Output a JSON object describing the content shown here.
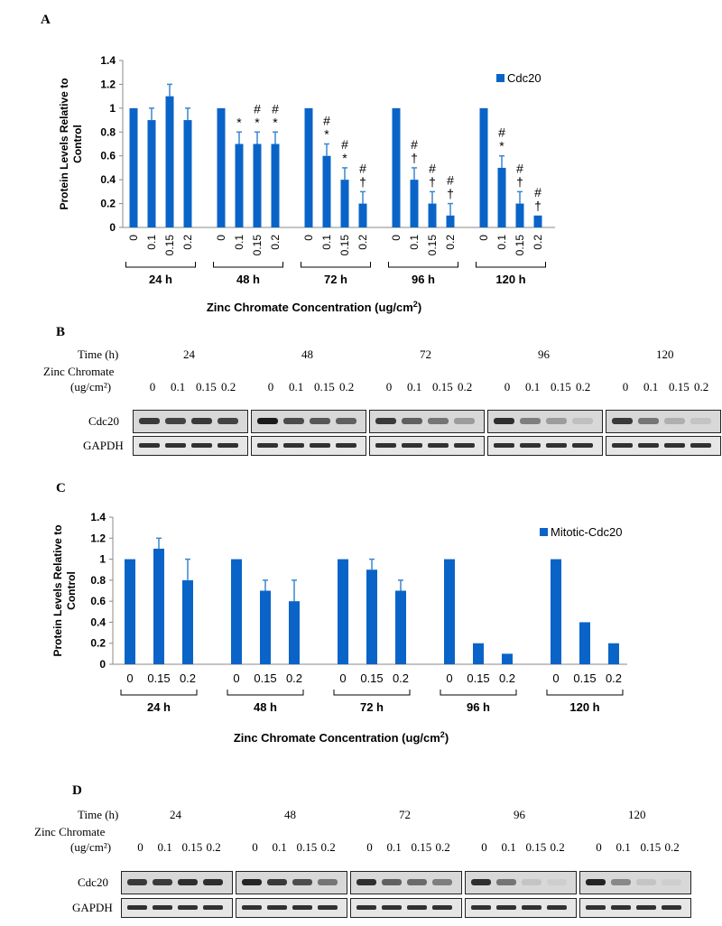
{
  "panels": {
    "A": "A",
    "B": "B",
    "C": "C",
    "D": "D"
  },
  "colors": {
    "bar": "#0a64c8",
    "error": "#3a86d0",
    "axis": "#888888"
  },
  "chart_data": [
    {
      "id": "A",
      "type": "bar",
      "ylabel": "Protein Levels Relative to Control",
      "xlabel": "Zinc Chromate Concentration (ug/cm²)",
      "ylim": [
        0,
        1.4
      ],
      "yticks": [
        "0",
        "0.2",
        "0.4",
        "0.6",
        "0.8",
        "1",
        "1.2",
        "1.4"
      ],
      "legend": "Cdc20",
      "legend_position": "top-right",
      "groups": [
        {
          "label": "24 h",
          "categories": [
            "0",
            "0.1",
            "0.15",
            "0.2"
          ],
          "values": [
            1.0,
            0.9,
            1.1,
            0.9
          ],
          "errors": [
            0,
            0.1,
            0.1,
            0.1
          ],
          "marks": [
            "",
            "",
            "",
            ""
          ]
        },
        {
          "label": "48 h",
          "categories": [
            "0",
            "0.1",
            "0.15",
            "0.2"
          ],
          "values": [
            1.0,
            0.7,
            0.7,
            0.7
          ],
          "errors": [
            0,
            0.1,
            0.1,
            0.1
          ],
          "marks": [
            "",
            "*",
            "#\n*",
            "#\n*"
          ]
        },
        {
          "label": "72 h",
          "categories": [
            "0",
            "0.1",
            "0.15",
            "0.2"
          ],
          "values": [
            1.0,
            0.6,
            0.4,
            0.2
          ],
          "errors": [
            0,
            0.1,
            0.1,
            0.1
          ],
          "marks": [
            "",
            "#\n*",
            "#\n*",
            "#\n†"
          ]
        },
        {
          "label": "96 h",
          "categories": [
            "0",
            "0.1",
            "0.15",
            "0.2"
          ],
          "values": [
            1.0,
            0.4,
            0.2,
            0.1
          ],
          "errors": [
            0,
            0.1,
            0.1,
            0.1
          ],
          "marks": [
            "",
            "#\n†",
            "#\n†",
            "#\n†"
          ]
        },
        {
          "label": "120 h",
          "categories": [
            "0",
            "0.1",
            "0.15",
            "0.2"
          ],
          "values": [
            1.0,
            0.5,
            0.2,
            0.1
          ],
          "errors": [
            0,
            0.1,
            0.1,
            0
          ],
          "marks": [
            "",
            "#\n*",
            "#\n†",
            "#\n†"
          ]
        }
      ]
    },
    {
      "id": "C",
      "type": "bar",
      "ylabel": "Protein Levels Relative to Control",
      "xlabel": "Zinc Chromate Concentration (ug/cm²)",
      "ylim": [
        0,
        1.4
      ],
      "yticks": [
        "0",
        "0.2",
        "0.4",
        "0.6",
        "0.8",
        "1",
        "1.2",
        "1.4"
      ],
      "legend": "Mitotic-Cdc20",
      "legend_position": "top-right",
      "groups": [
        {
          "label": "24 h",
          "categories": [
            "0",
            "0.15",
            "0.2"
          ],
          "values": [
            1.0,
            1.1,
            0.8
          ],
          "errors": [
            0,
            0.1,
            0.2
          ]
        },
        {
          "label": "48 h",
          "categories": [
            "0",
            "0.15",
            "0.2"
          ],
          "values": [
            1.0,
            0.7,
            0.6
          ],
          "errors": [
            0,
            0.1,
            0.2
          ]
        },
        {
          "label": "72 h",
          "categories": [
            "0",
            "0.15",
            "0.2"
          ],
          "values": [
            1.0,
            0.9,
            0.7
          ],
          "errors": [
            0,
            0.1,
            0.1
          ]
        },
        {
          "label": "96 h",
          "categories": [
            "0",
            "0.15",
            "0.2"
          ],
          "values": [
            1.0,
            0.2,
            0.1
          ],
          "errors": [
            0,
            0,
            0
          ]
        },
        {
          "label": "120 h",
          "categories": [
            "0",
            "0.15",
            "0.2"
          ],
          "values": [
            1.0,
            0.4,
            0.2
          ],
          "errors": [
            0,
            0,
            0
          ]
        }
      ]
    }
  ],
  "blotB": {
    "time_label": "Time (h)",
    "zinc_label": "Zinc Chromate",
    "unit_label": "(ug/cm²)",
    "times": [
      "24",
      "48",
      "72",
      "96",
      "120"
    ],
    "concs": [
      "0",
      "0.1",
      "0.15",
      "0.2"
    ],
    "rows": [
      "Cdc20",
      "GAPDH"
    ],
    "cdc20_intensity": [
      [
        0.8,
        0.75,
        0.8,
        0.75
      ],
      [
        0.95,
        0.7,
        0.65,
        0.6
      ],
      [
        0.8,
        0.6,
        0.5,
        0.3
      ],
      [
        0.85,
        0.45,
        0.3,
        0.12
      ],
      [
        0.8,
        0.5,
        0.2,
        0.1
      ]
    ]
  },
  "blotD": {
    "time_label": "Time (h)",
    "zinc_label": "Zinc Chromate",
    "unit_label": "(ug/cm²)",
    "times": [
      "24",
      "48",
      "72",
      "96",
      "120"
    ],
    "concs": [
      "0",
      "0.1",
      "0.15",
      "0.2"
    ],
    "rows": [
      "Cdc20",
      "GAPDH"
    ],
    "cdc20_intensity": [
      [
        0.8,
        0.8,
        0.85,
        0.85
      ],
      [
        0.9,
        0.8,
        0.7,
        0.5
      ],
      [
        0.85,
        0.6,
        0.55,
        0.45
      ],
      [
        0.85,
        0.5,
        0.1,
        0.05
      ],
      [
        0.9,
        0.4,
        0.1,
        0.05
      ]
    ]
  }
}
